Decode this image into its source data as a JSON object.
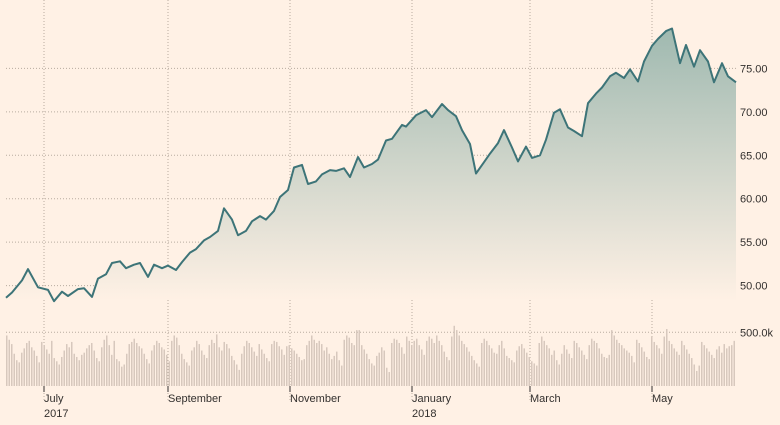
{
  "chart_data": {
    "type": "area",
    "title": "",
    "xlabel": "",
    "ylabel": "",
    "price_axis": {
      "ticks": [
        "50.00",
        "55.00",
        "60.00",
        "65.00",
        "70.00",
        "75.00"
      ],
      "ylim": [
        46.5,
        80.0
      ]
    },
    "volume_axis": {
      "tick_label": "500.0k",
      "tick_value": 500000,
      "ylim": [
        0,
        800000
      ]
    },
    "x_axis": {
      "range": [
        "2017-06-12",
        "2018-06-12"
      ],
      "ticks": [
        {
          "date": "2017-07-01",
          "label": "July",
          "year": "2017"
        },
        {
          "date": "2017-09-01",
          "label": "September",
          "year": ""
        },
        {
          "date": "2017-11-01",
          "label": "November",
          "year": ""
        },
        {
          "date": "2018-01-01",
          "label": "January",
          "year": "2018"
        },
        {
          "date": "2018-03-01",
          "label": "March",
          "year": ""
        },
        {
          "date": "2018-05-01",
          "label": "May",
          "year": ""
        }
      ]
    },
    "grid": true,
    "series": [
      {
        "values_type": "price",
        "points": [
          [
            "2017-06-12",
            48.6
          ],
          [
            "2017-06-15",
            49.2
          ],
          [
            "2017-06-20",
            50.6
          ],
          [
            "2017-06-23",
            51.9
          ],
          [
            "2017-06-28",
            49.8
          ],
          [
            "2017-07-03",
            49.5
          ],
          [
            "2017-07-06",
            48.2
          ],
          [
            "2017-07-10",
            49.3
          ],
          [
            "2017-07-13",
            48.8
          ],
          [
            "2017-07-18",
            49.6
          ],
          [
            "2017-07-21",
            49.7
          ],
          [
            "2017-07-25",
            48.7
          ],
          [
            "2017-07-28",
            50.8
          ],
          [
            "2017-08-01",
            51.3
          ],
          [
            "2017-08-04",
            52.6
          ],
          [
            "2017-08-08",
            52.8
          ],
          [
            "2017-08-11",
            52.0
          ],
          [
            "2017-08-15",
            52.4
          ],
          [
            "2017-08-18",
            52.6
          ],
          [
            "2017-08-22",
            51.0
          ],
          [
            "2017-08-25",
            52.4
          ],
          [
            "2017-08-29",
            52.0
          ],
          [
            "2017-09-01",
            52.3
          ],
          [
            "2017-09-05",
            51.8
          ],
          [
            "2017-09-08",
            52.7
          ],
          [
            "2017-09-12",
            53.8
          ],
          [
            "2017-09-15",
            54.2
          ],
          [
            "2017-09-19",
            55.2
          ],
          [
            "2017-09-22",
            55.6
          ],
          [
            "2017-09-26",
            56.3
          ],
          [
            "2017-09-29",
            58.9
          ],
          [
            "2017-10-03",
            57.6
          ],
          [
            "2017-10-06",
            55.8
          ],
          [
            "2017-10-10",
            56.3
          ],
          [
            "2017-10-13",
            57.4
          ],
          [
            "2017-10-17",
            58.0
          ],
          [
            "2017-10-20",
            57.6
          ],
          [
            "2017-10-24",
            58.6
          ],
          [
            "2017-10-27",
            60.2
          ],
          [
            "2017-10-31",
            61.0
          ],
          [
            "2017-11-03",
            63.6
          ],
          [
            "2017-11-07",
            63.9
          ],
          [
            "2017-11-10",
            61.7
          ],
          [
            "2017-11-14",
            62.0
          ],
          [
            "2017-11-17",
            62.8
          ],
          [
            "2017-11-21",
            63.3
          ],
          [
            "2017-11-24",
            63.2
          ],
          [
            "2017-11-28",
            63.5
          ],
          [
            "2017-12-01",
            62.5
          ],
          [
            "2017-12-05",
            64.8
          ],
          [
            "2017-12-08",
            63.6
          ],
          [
            "2017-12-12",
            64.0
          ],
          [
            "2017-12-15",
            64.5
          ],
          [
            "2017-12-19",
            66.7
          ],
          [
            "2017-12-22",
            66.9
          ],
          [
            "2017-12-27",
            68.5
          ],
          [
            "2017-12-29",
            68.3
          ],
          [
            "2018-01-03",
            69.6
          ],
          [
            "2018-01-08",
            70.2
          ],
          [
            "2018-01-11",
            69.4
          ],
          [
            "2018-01-16",
            70.9
          ],
          [
            "2018-01-19",
            70.2
          ],
          [
            "2018-01-23",
            69.5
          ],
          [
            "2018-01-26",
            67.9
          ],
          [
            "2018-01-30",
            66.3
          ],
          [
            "2018-02-02",
            62.9
          ],
          [
            "2018-02-06",
            64.2
          ],
          [
            "2018-02-09",
            65.2
          ],
          [
            "2018-02-13",
            66.4
          ],
          [
            "2018-02-16",
            67.9
          ],
          [
            "2018-02-20",
            65.9
          ],
          [
            "2018-02-23",
            64.3
          ],
          [
            "2018-02-27",
            66.0
          ],
          [
            "2018-03-02",
            64.7
          ],
          [
            "2018-03-06",
            65.0
          ],
          [
            "2018-03-09",
            66.8
          ],
          [
            "2018-03-13",
            69.9
          ],
          [
            "2018-03-16",
            70.3
          ],
          [
            "2018-03-20",
            68.2
          ],
          [
            "2018-03-23",
            67.8
          ],
          [
            "2018-03-27",
            67.2
          ],
          [
            "2018-03-30",
            71.0
          ],
          [
            "2018-04-03",
            72.1
          ],
          [
            "2018-04-06",
            72.8
          ],
          [
            "2018-04-10",
            74.1
          ],
          [
            "2018-04-13",
            74.5
          ],
          [
            "2018-04-17",
            73.9
          ],
          [
            "2018-04-20",
            74.9
          ],
          [
            "2018-04-24",
            73.5
          ],
          [
            "2018-04-27",
            75.8
          ],
          [
            "2018-05-01",
            77.6
          ],
          [
            "2018-05-04",
            78.4
          ],
          [
            "2018-05-08",
            79.3
          ],
          [
            "2018-05-11",
            79.6
          ],
          [
            "2018-05-15",
            75.6
          ],
          [
            "2018-05-18",
            77.7
          ],
          [
            "2018-05-22",
            75.2
          ],
          [
            "2018-05-25",
            77.1
          ],
          [
            "2018-05-29",
            75.8
          ],
          [
            "2018-06-01",
            73.4
          ],
          [
            "2018-06-05",
            75.6
          ],
          [
            "2018-06-08",
            74.1
          ],
          [
            "2018-06-12",
            73.4
          ]
        ]
      },
      {
        "values_type": "volume",
        "values": [
          470000,
          430000,
          390000,
          300000,
          240000,
          220000,
          310000,
          350000,
          400000,
          420000,
          360000,
          330000,
          280000,
          220000,
          410000,
          380000,
          340000,
          300000,
          420000,
          260000,
          230000,
          200000,
          270000,
          330000,
          390000,
          360000,
          410000,
          300000,
          270000,
          240000,
          290000,
          310000,
          350000,
          380000,
          400000,
          330000,
          260000,
          230000,
          360000,
          430000,
          470000,
          380000,
          290000,
          420000,
          250000,
          230000,
          180000,
          200000,
          300000,
          390000,
          410000,
          440000,
          400000,
          370000,
          350000,
          300000,
          250000,
          210000,
          330000,
          380000,
          420000,
          400000,
          360000,
          340000,
          290000,
          230000,
          420000,
          470000,
          450000,
          380000,
          300000,
          250000,
          220000,
          190000,
          330000,
          360000,
          420000,
          390000,
          330000,
          290000,
          260000,
          380000,
          430000,
          400000,
          480000,
          360000,
          330000,
          410000,
          390000,
          350000,
          280000,
          240000,
          200000,
          150000,
          300000,
          370000,
          420000,
          400000,
          360000,
          320000,
          280000,
          390000,
          340000,
          300000,
          260000,
          230000,
          390000,
          420000,
          410000,
          370000,
          340000,
          290000,
          370000,
          380000,
          350000,
          330000,
          300000,
          270000,
          240000,
          250000,
          380000,
          420000,
          470000,
          430000,
          400000,
          420000,
          390000,
          330000,
          360000,
          300000,
          250000,
          280000,
          320000,
          240000,
          190000,
          430000,
          470000,
          450000,
          400000,
          380000,
          520000,
          520000,
          380000,
          340000,
          300000,
          250000,
          210000,
          190000,
          280000,
          310000,
          360000,
          330000,
          170000,
          130000,
          400000,
          440000,
          430000,
          400000,
          360000,
          300000,
          460000,
          420000,
          380000,
          420000,
          440000,
          380000,
          340000,
          290000,
          420000,
          460000,
          440000,
          400000,
          470000,
          420000,
          380000,
          320000,
          270000,
          240000,
          460000,
          560000,
          520000,
          470000,
          420000,
          390000,
          360000,
          320000,
          280000,
          240000,
          210000,
          180000,
          400000,
          440000,
          420000,
          380000,
          350000,
          310000,
          300000,
          380000,
          420000,
          350000,
          280000,
          260000,
          240000,
          220000,
          330000,
          370000,
          390000,
          350000,
          310000,
          270000,
          230000,
          210000,
          190000,
          400000,
          460000,
          420000,
          380000,
          350000,
          290000,
          330000,
          240000,
          200000,
          300000,
          380000,
          340000,
          300000,
          260000,
          420000,
          400000,
          360000,
          330000,
          290000,
          250000,
          380000,
          440000,
          420000,
          400000,
          350000,
          300000,
          270000,
          260000,
          290000,
          520000,
          470000,
          430000,
          400000,
          380000,
          350000,
          330000,
          310000,
          280000,
          220000,
          430000,
          400000,
          360000,
          320000,
          270000,
          250000,
          460000,
          410000,
          380000,
          350000,
          300000,
          460000,
          530000,
          420000,
          390000,
          350000,
          320000,
          290000,
          420000,
          380000,
          340000,
          300000,
          260000,
          200000,
          140000,
          190000,
          410000,
          380000,
          350000,
          320000,
          290000,
          260000,
          340000,
          370000,
          310000,
          390000,
          350000,
          370000,
          380000,
          420000
        ]
      }
    ]
  }
}
